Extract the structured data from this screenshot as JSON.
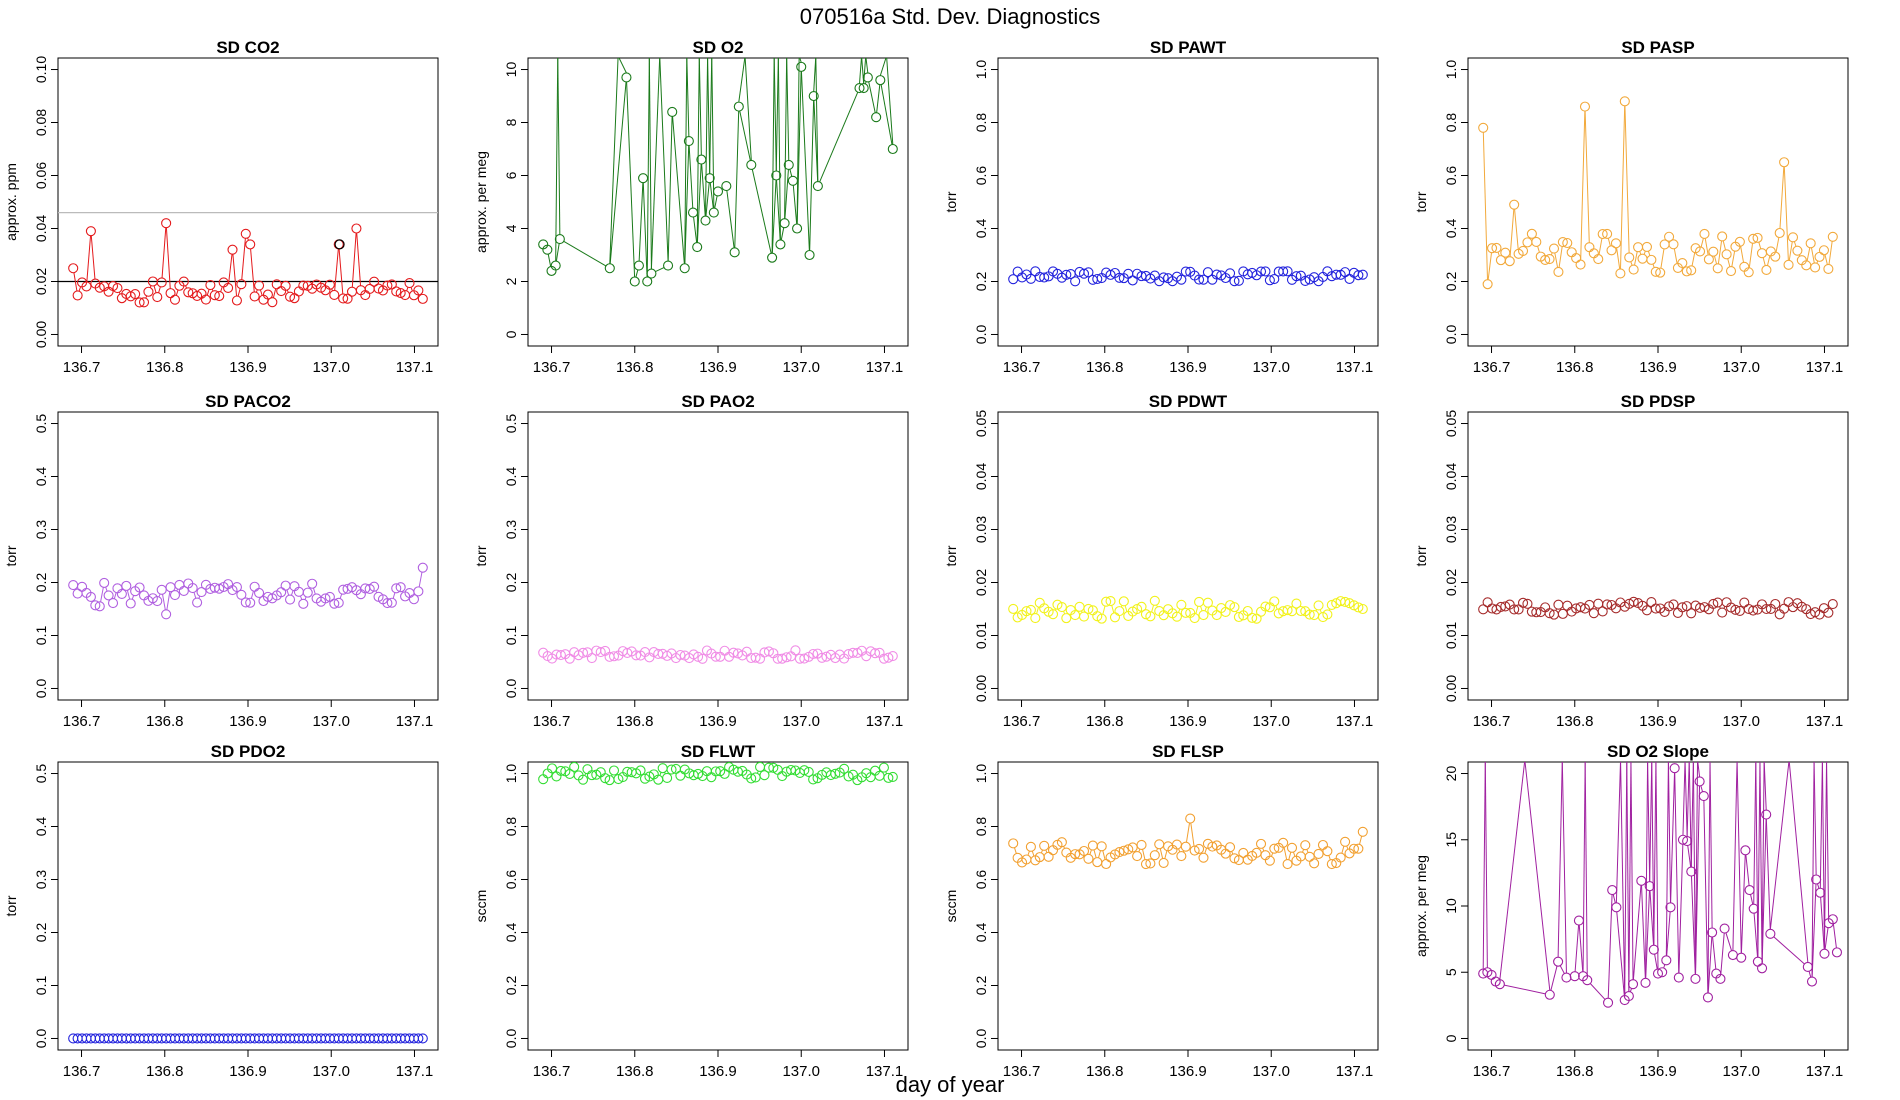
{
  "page_title": "070516a   Std. Dev. Diagnostics",
  "global_xlabel": "day of year",
  "chart_data": [
    {
      "type": "scatter",
      "title": "SD CO2",
      "xlabel": "",
      "ylabel": "approx. ppm",
      "xlim": [
        136.69,
        137.11
      ],
      "ylim": [
        0,
        0.1
      ],
      "yticks": [
        "0.00",
        "0.02",
        "0.04",
        "0.06",
        "0.08",
        "0.10"
      ],
      "xticks": [
        "136.7",
        "136.8",
        "136.9",
        "137.0",
        "137.1"
      ],
      "color": "#e41a1c",
      "reference_lines": [
        {
          "y": 0.046,
          "color": "#bbbbbb"
        },
        {
          "y": 0.02,
          "color": "#000000"
        }
      ],
      "base": 0.016,
      "amp": 0.004,
      "seed": 1,
      "spikes": [
        [
          0.02,
          0.039
        ],
        [
          0.11,
          0.042
        ],
        [
          0.205,
          0.038
        ],
        [
          0.215,
          0.034
        ],
        [
          0.19,
          0.032
        ],
        [
          0.32,
          0.034
        ],
        [
          0.34,
          0.04
        ],
        [
          0.0,
          0.025
        ]
      ],
      "highlight": [
        {
          "x": 137.01,
          "y": 0.034,
          "color": "#000000"
        }
      ]
    },
    {
      "type": "scatter",
      "title": "SD O2",
      "xlabel": "",
      "ylabel": "approx. per meg",
      "xlim": [
        136.69,
        137.11
      ],
      "ylim": [
        0,
        10
      ],
      "yticks": [
        "0",
        "2",
        "4",
        "6",
        "8",
        "10"
      ],
      "xticks": [
        "136.7",
        "136.8",
        "136.9",
        "137.0",
        "137.1"
      ],
      "color": "#1a7a1a",
      "mode": "wild",
      "lo": 2,
      "hi": 10,
      "seed": 2,
      "points": [
        [
          136.69,
          3.4
        ],
        [
          136.695,
          3.2
        ],
        [
          136.7,
          2.4
        ],
        [
          136.705,
          2.6
        ],
        [
          136.71,
          3.6
        ],
        [
          136.77,
          2.5
        ],
        [
          136.79,
          9.7
        ],
        [
          136.8,
          2.0
        ],
        [
          136.805,
          2.6
        ],
        [
          136.81,
          5.9
        ],
        [
          136.815,
          2.0
        ],
        [
          136.82,
          2.3
        ],
        [
          136.84,
          2.6
        ],
        [
          136.845,
          8.4
        ],
        [
          136.86,
          2.5
        ],
        [
          136.865,
          7.3
        ],
        [
          136.87,
          4.6
        ],
        [
          136.875,
          3.3
        ],
        [
          136.88,
          6.6
        ],
        [
          136.885,
          4.3
        ],
        [
          136.89,
          5.9
        ],
        [
          136.895,
          4.6
        ],
        [
          136.9,
          5.4
        ],
        [
          136.91,
          5.6
        ],
        [
          136.92,
          3.1
        ],
        [
          136.925,
          8.6
        ],
        [
          136.94,
          6.4
        ],
        [
          136.965,
          2.9
        ],
        [
          136.97,
          6.0
        ],
        [
          136.975,
          3.4
        ],
        [
          136.98,
          4.2
        ],
        [
          136.985,
          6.4
        ],
        [
          136.99,
          5.8
        ],
        [
          136.995,
          4.0
        ],
        [
          137.0,
          10.1
        ],
        [
          137.01,
          3.0
        ],
        [
          137.015,
          9.0
        ],
        [
          137.02,
          5.6
        ],
        [
          137.07,
          9.3
        ],
        [
          137.075,
          9.3
        ],
        [
          137.08,
          9.7
        ],
        [
          137.09,
          8.2
        ],
        [
          137.095,
          9.6
        ],
        [
          137.11,
          7.0
        ]
      ]
    },
    {
      "type": "scatter",
      "title": "SD PAWT",
      "xlabel": "",
      "ylabel": "torr",
      "xlim": [
        136.69,
        137.11
      ],
      "ylim": [
        0,
        1
      ],
      "yticks": [
        "0.0",
        "0.2",
        "0.4",
        "0.6",
        "0.8",
        "1.0"
      ],
      "xticks": [
        "136.7",
        "136.8",
        "136.9",
        "137.0",
        "137.1"
      ],
      "color": "#2222dd",
      "base": 0.22,
      "amp": 0.02,
      "seed": 3
    },
    {
      "type": "scatter",
      "title": "SD PASP",
      "xlabel": "",
      "ylabel": "torr",
      "xlim": [
        136.69,
        137.11
      ],
      "ylim": [
        0,
        1
      ],
      "yticks": [
        "0.0",
        "0.2",
        "0.4",
        "0.6",
        "0.8",
        "1.0"
      ],
      "xticks": [
        "136.7",
        "136.8",
        "136.9",
        "137.0",
        "137.1"
      ],
      "color": "#f2a93b",
      "base": 0.31,
      "amp": 0.08,
      "seed": 4,
      "spikes": [
        [
          0.0,
          0.78
        ],
        [
          0.005,
          0.19
        ],
        [
          0.12,
          0.86
        ],
        [
          0.17,
          0.88
        ],
        [
          0.36,
          0.65
        ],
        [
          0.035,
          0.49
        ]
      ]
    },
    {
      "type": "scatter",
      "title": "SD PACO2",
      "xlabel": "",
      "ylabel": "torr",
      "xlim": [
        136.69,
        137.11
      ],
      "ylim": [
        0,
        0.5
      ],
      "yticks": [
        "0.0",
        "0.1",
        "0.2",
        "0.3",
        "0.4",
        "0.5"
      ],
      "xticks": [
        "136.7",
        "136.8",
        "136.9",
        "137.0",
        "137.1"
      ],
      "color": "#b05fe0",
      "base": 0.178,
      "amp": 0.022,
      "seed": 5,
      "spikes": [
        [
          0.42,
          0.228
        ],
        [
          0.03,
          0.155
        ],
        [
          0.11,
          0.14
        ]
      ]
    },
    {
      "type": "scatter",
      "title": "SD PAO2",
      "xlabel": "",
      "ylabel": "torr",
      "xlim": [
        136.69,
        137.11
      ],
      "ylim": [
        0,
        0.5
      ],
      "yticks": [
        "0.0",
        "0.1",
        "0.2",
        "0.3",
        "0.4",
        "0.5"
      ],
      "xticks": [
        "136.7",
        "136.8",
        "136.9",
        "137.0",
        "137.1"
      ],
      "color": "#f08ce6",
      "base": 0.064,
      "amp": 0.008,
      "seed": 6
    },
    {
      "type": "scatter",
      "title": "SD PDWT",
      "xlabel": "",
      "ylabel": "torr",
      "xlim": [
        136.69,
        137.11
      ],
      "ylim": [
        0,
        0.05
      ],
      "yticks": [
        "0.00",
        "0.01",
        "0.02",
        "0.03",
        "0.04",
        "0.05"
      ],
      "xticks": [
        "136.7",
        "136.8",
        "136.9",
        "137.0",
        "137.1"
      ],
      "color": "#f2f21a",
      "base": 0.0148,
      "amp": 0.0018,
      "seed": 7
    },
    {
      "type": "scatter",
      "title": "SD PDSP",
      "xlabel": "",
      "ylabel": "torr",
      "xlim": [
        136.69,
        137.11
      ],
      "ylim": [
        0,
        0.05
      ],
      "yticks": [
        "0.00",
        "0.01",
        "0.02",
        "0.03",
        "0.04",
        "0.05"
      ],
      "xticks": [
        "136.7",
        "136.8",
        "136.9",
        "137.0",
        "137.1"
      ],
      "color": "#a52a2a",
      "base": 0.0152,
      "amp": 0.0013,
      "seed": 8
    },
    {
      "type": "scatter",
      "title": "SD PDO2",
      "xlabel": "",
      "ylabel": "torr",
      "xlim": [
        136.69,
        137.11
      ],
      "ylim": [
        0,
        0.5
      ],
      "yticks": [
        "0.0",
        "0.1",
        "0.2",
        "0.3",
        "0.4",
        "0.5"
      ],
      "xticks": [
        "136.7",
        "136.8",
        "136.9",
        "137.0",
        "137.1"
      ],
      "color": "#2222dd",
      "base": 0.0,
      "amp": 0.0,
      "seed": 9
    },
    {
      "type": "scatter",
      "title": "SD FLWT",
      "xlabel": "",
      "ylabel": "sccm",
      "xlim": [
        136.69,
        137.11
      ],
      "ylim": [
        0,
        1
      ],
      "yticks": [
        "0.0",
        "0.2",
        "0.4",
        "0.6",
        "0.8",
        "1.0"
      ],
      "xticks": [
        "136.7",
        "136.8",
        "136.9",
        "137.0",
        "137.1"
      ],
      "color": "#33dd33",
      "base": 1.0,
      "amp": 0.025,
      "seed": 10
    },
    {
      "type": "scatter",
      "title": "SD FLSP",
      "xlabel": "",
      "ylabel": "sccm",
      "xlim": [
        136.69,
        137.11
      ],
      "ylim": [
        0,
        1
      ],
      "yticks": [
        "0.0",
        "0.2",
        "0.4",
        "0.6",
        "0.8",
        "1.0"
      ],
      "xticks": [
        "136.7",
        "136.8",
        "136.9",
        "137.0",
        "137.1"
      ],
      "color": "#f2a030",
      "base": 0.7,
      "amp": 0.045,
      "seed": 11,
      "spikes": [
        [
          0.21,
          0.83
        ],
        [
          0.42,
          0.78
        ]
      ]
    },
    {
      "type": "scatter",
      "title": "SD O2 Slope",
      "xlabel": "",
      "ylabel": "approx. per meg",
      "xlim": [
        136.69,
        137.11
      ],
      "ylim": [
        0,
        20
      ],
      "yticks": [
        "0",
        "5",
        "10",
        "15",
        "20"
      ],
      "xticks": [
        "136.7",
        "136.8",
        "136.9",
        "137.0",
        "137.1"
      ],
      "color": "#a020a0",
      "mode": "wild",
      "lo": 2.5,
      "hi": 20.5,
      "seed": 12,
      "points": [
        [
          136.69,
          4.9
        ],
        [
          136.695,
          5.0
        ],
        [
          136.7,
          4.8
        ],
        [
          136.705,
          4.3
        ],
        [
          136.71,
          4.1
        ],
        [
          136.77,
          3.3
        ],
        [
          136.78,
          5.8
        ],
        [
          136.79,
          4.6
        ],
        [
          136.8,
          4.7
        ],
        [
          136.805,
          8.9
        ],
        [
          136.81,
          4.7
        ],
        [
          136.815,
          4.4
        ],
        [
          136.84,
          2.7
        ],
        [
          136.845,
          11.2
        ],
        [
          136.85,
          9.9
        ],
        [
          136.86,
          2.9
        ],
        [
          136.865,
          3.2
        ],
        [
          136.87,
          4.1
        ],
        [
          136.88,
          11.9
        ],
        [
          136.885,
          4.2
        ],
        [
          136.89,
          11.5
        ],
        [
          136.895,
          6.7
        ],
        [
          136.9,
          4.9
        ],
        [
          136.905,
          5.0
        ],
        [
          136.91,
          5.9
        ],
        [
          136.915,
          9.9
        ],
        [
          136.92,
          20.4
        ],
        [
          136.925,
          4.6
        ],
        [
          136.93,
          15.0
        ],
        [
          136.935,
          14.9
        ],
        [
          136.94,
          12.6
        ],
        [
          136.945,
          4.5
        ],
        [
          136.95,
          19.4
        ],
        [
          136.955,
          18.3
        ],
        [
          136.96,
          3.1
        ],
        [
          136.965,
          8.0
        ],
        [
          136.97,
          4.9
        ],
        [
          136.975,
          4.5
        ],
        [
          136.98,
          8.3
        ],
        [
          136.99,
          6.3
        ],
        [
          137.0,
          6.1
        ],
        [
          137.005,
          14.2
        ],
        [
          137.01,
          11.2
        ],
        [
          137.015,
          9.8
        ],
        [
          137.02,
          5.8
        ],
        [
          137.025,
          5.3
        ],
        [
          137.03,
          16.9
        ],
        [
          137.035,
          7.9
        ],
        [
          137.08,
          5.4
        ],
        [
          137.085,
          4.3
        ],
        [
          137.09,
          12.0
        ],
        [
          137.095,
          11.0
        ],
        [
          137.1,
          6.4
        ],
        [
          137.105,
          8.7
        ],
        [
          137.11,
          9.0
        ],
        [
          137.115,
          6.5
        ]
      ]
    }
  ]
}
